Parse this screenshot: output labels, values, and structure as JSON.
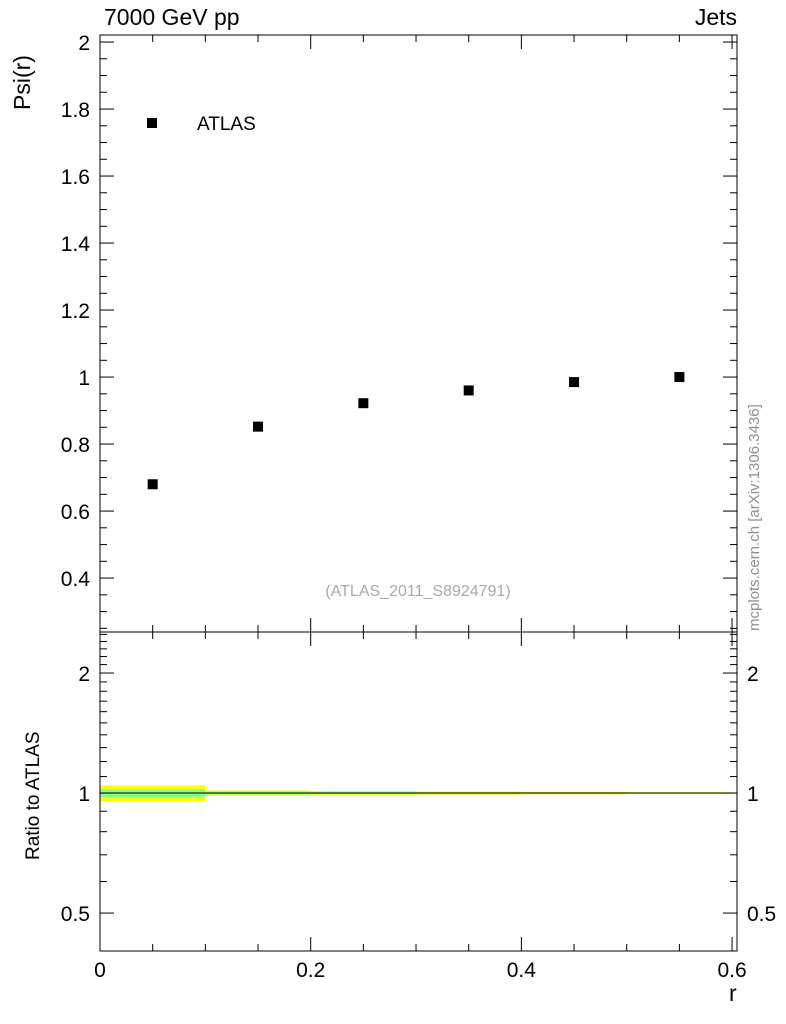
{
  "header": {
    "left_title": "7000 GeV pp",
    "right_title": "Jets"
  },
  "watermark_label": "(ATLAS_2011_S8924791)",
  "side_note": "mcplots.cern.ch [arXiv:1306.3436]",
  "colors": {
    "marker": "#000000",
    "frame": "#000000",
    "band_outer": "#ffff00",
    "band_inner": "#84ff84",
    "reference_line": "#000000",
    "watermark": "#a9a9a9",
    "side_note": "#8f8f8f"
  },
  "chart_data": {
    "type": "scatter",
    "x_axis": {
      "label": "r",
      "lim": [
        0,
        0.6047
      ],
      "major_ticks": [
        0,
        0.2,
        0.4,
        0.6
      ],
      "major_tick_labels": [
        "0",
        "0.2",
        "0.4",
        "0.6"
      ],
      "minor_ticks": [
        0.05,
        0.1,
        0.15,
        0.25,
        0.3,
        0.35,
        0.45,
        0.5,
        0.55
      ]
    },
    "main_panel": {
      "ylabel": "Psi(r)",
      "yscale": "linear",
      "ylim": [
        0.239,
        2.021
      ],
      "major_ticks": [
        0.4,
        0.6,
        0.8,
        1,
        1.2,
        1.4,
        1.6,
        1.8,
        2
      ],
      "major_tick_labels": [
        "0.4",
        "0.6",
        "0.8",
        "1",
        "1.2",
        "1.4",
        "1.6",
        "1.8",
        "2"
      ],
      "minor_step": 0.05,
      "series": [
        {
          "name": "ATLAS",
          "marker": "square",
          "color": "#000000",
          "points": [
            [
              0.05,
              0.68
            ],
            [
              0.15,
              0.852
            ],
            [
              0.25,
              0.922
            ],
            [
              0.35,
              0.96
            ],
            [
              0.45,
              0.985
            ],
            [
              0.55,
              1.0
            ]
          ]
        }
      ],
      "legend": [
        {
          "label": "ATLAS",
          "marker": "square"
        }
      ]
    },
    "ratio_panel": {
      "ylabel": "Ratio to ATLAS",
      "yscale": "log",
      "ylim": [
        0.4016,
        2.535
      ],
      "major_ticks": [
        0.5,
        1,
        2
      ],
      "major_tick_labels": [
        "0.5",
        "1",
        "2"
      ],
      "minor_ticks": [
        0.6,
        0.7,
        0.8,
        0.9,
        1.1,
        1.2,
        1.3,
        1.4,
        1.5,
        1.6,
        1.7,
        1.8,
        1.9,
        2.1,
        2.2,
        2.3,
        2.4,
        2.5
      ],
      "reference_line_y": 1,
      "bands": [
        {
          "x0": 0.0,
          "x1": 0.1,
          "outer_lo": 0.955,
          "outer_hi": 1.045,
          "inner_lo": 0.977,
          "inner_hi": 1.023
        },
        {
          "x0": 0.1,
          "x1": 0.2,
          "outer_lo": 0.985,
          "outer_hi": 1.015,
          "inner_lo": 0.991,
          "inner_hi": 1.009
        },
        {
          "x0": 0.2,
          "x1": 0.3,
          "outer_lo": 0.988,
          "outer_hi": 1.012,
          "inner_lo": 0.993,
          "inner_hi": 1.007
        },
        {
          "x0": 0.3,
          "x1": 0.4,
          "outer_lo": 0.991,
          "outer_hi": 1.009,
          "inner_lo": 0.995,
          "inner_hi": 1.005
        },
        {
          "x0": 0.4,
          "x1": 0.5,
          "outer_lo": 0.993,
          "outer_hi": 1.007,
          "inner_lo": 0.996,
          "inner_hi": 1.004
        },
        {
          "x0": 0.5,
          "x1": 0.6,
          "outer_lo": 0.995,
          "outer_hi": 1.005,
          "inner_lo": 0.997,
          "inner_hi": 1.003
        }
      ]
    }
  }
}
